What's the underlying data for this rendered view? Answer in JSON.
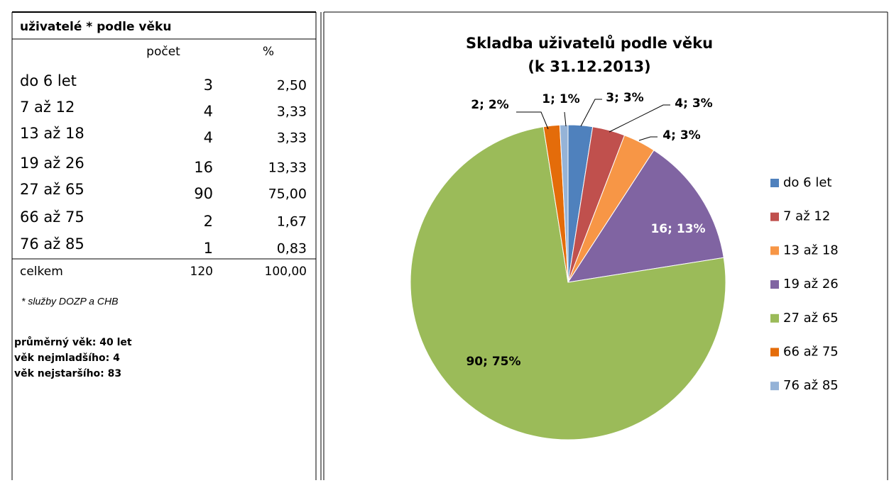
{
  "table": {
    "title": "uživatelé * podle věku",
    "header": [
      "počet",
      "%"
    ],
    "rows": [
      [
        "do 6 let",
        "3",
        "2,50"
      ],
      [
        "7 až 12",
        "4",
        "3,33"
      ],
      [
        "13 až 18",
        "4",
        "3,33"
      ],
      [
        "19 až 26",
        "16",
        "13,33"
      ],
      [
        "27 až 65",
        "90",
        "75,00"
      ],
      [
        "66 až 75",
        "2",
        "1,67"
      ],
      [
        "76 až 85",
        "1",
        "0,83"
      ]
    ],
    "total": [
      "celkem",
      "120",
      "100,00"
    ],
    "note": "* služby DOZP a CHB",
    "stats": [
      "průměrný věk: 40 let",
      "věk nejmladšího: 4",
      "věk nejstaršího: 83"
    ]
  },
  "chart_data": {
    "type": "pie",
    "title": [
      "Skladba uživatelů podle věku",
      "(k 31.12.2013)"
    ],
    "categories": [
      "do 6 let",
      "7 až 12",
      "13 až 18",
      "19 až 26",
      "27 až 65",
      "66 až 75",
      "76 až 85"
    ],
    "values": [
      3,
      4,
      4,
      16,
      90,
      2,
      1
    ],
    "value_labels": [
      "3; 3%",
      "4; 3%",
      "4; 3%",
      "16; 13%",
      "90; 75%",
      "2; 2%",
      "1; 1%"
    ],
    "colors": [
      "#4f81bd",
      "#c0504d",
      "#f79646",
      "#8064a2",
      "#9bbb59",
      "#e46c0a",
      "#95b3d7"
    ],
    "legend": "right"
  }
}
